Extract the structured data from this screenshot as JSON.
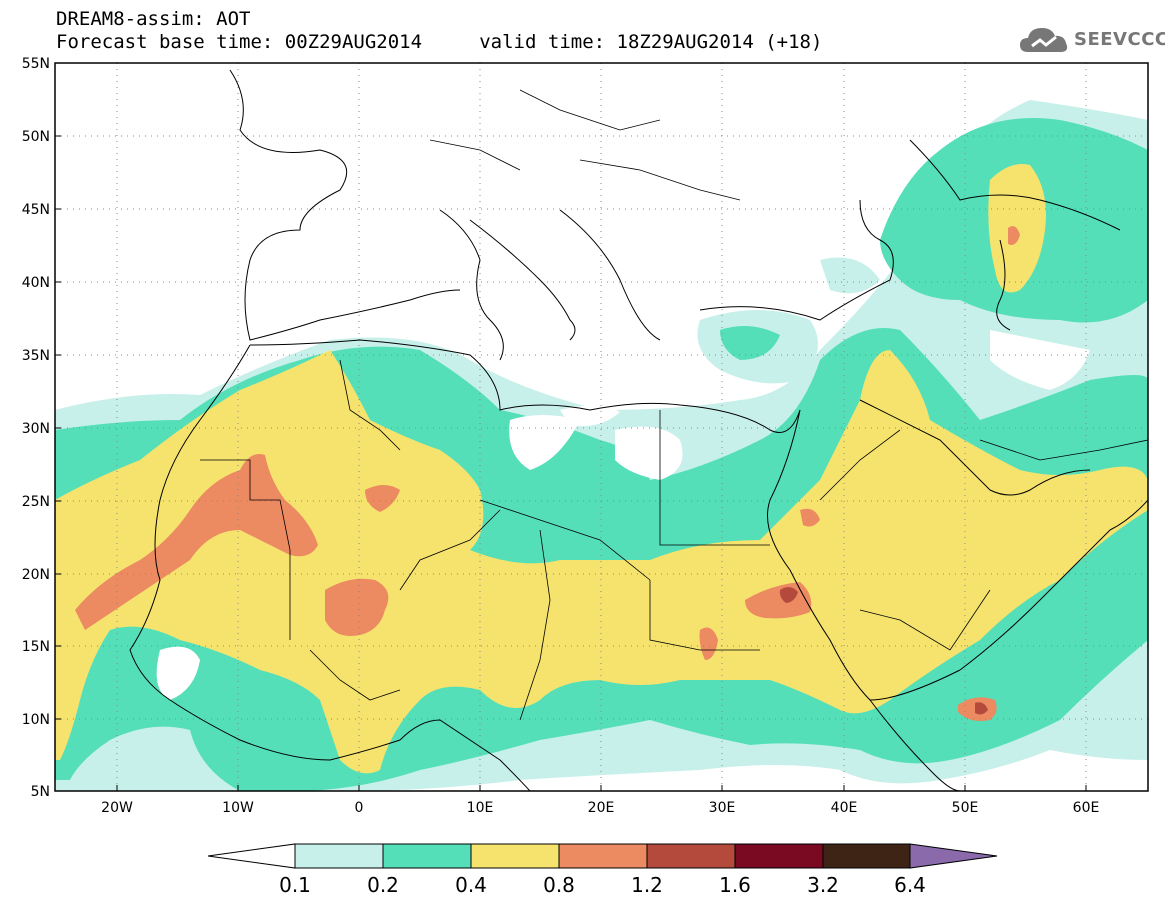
{
  "header": {
    "line1": "DREAM8-assim: AOT",
    "line2": "Forecast base time: 00Z29AUG2014     valid time: 18Z29AUG2014 (+18)"
  },
  "logo": {
    "text": "SEEVCCC",
    "icon": "cloud-icon",
    "color": "#777777"
  },
  "map": {
    "lon_range": [
      -25,
      65
    ],
    "lat_range": [
      5,
      55
    ],
    "lat_ticks": [
      "55N",
      "50N",
      "45N",
      "40N",
      "35N",
      "30N",
      "25N",
      "20N",
      "15N",
      "10N",
      "5N"
    ],
    "lon_ticks": [
      "20W",
      "10W",
      "0",
      "10E",
      "20E",
      "30E",
      "40E",
      "50E",
      "60E"
    ],
    "grid": "dotted"
  },
  "legend": {
    "levels": [
      "0.1",
      "0.2",
      "0.4",
      "0.8",
      "1.2",
      "1.6",
      "3.2",
      "6.4"
    ],
    "colors": [
      "#c8f0ea",
      "#55dfb8",
      "#f5e36e",
      "#ec8a62",
      "#b44a3c",
      "#7a0a22",
      "#3e2414",
      "#8a6aaa"
    ]
  }
}
